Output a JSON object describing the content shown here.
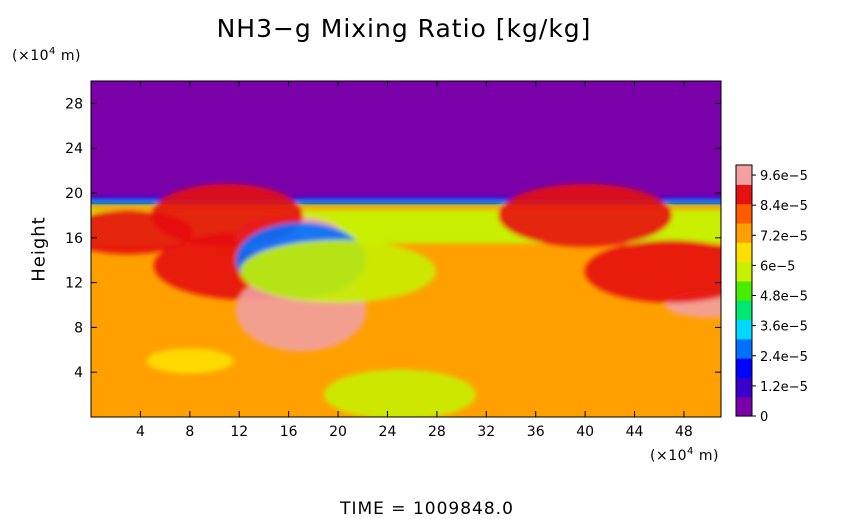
{
  "chart_data": {
    "type": "heatmap",
    "title": "NH3−g Mixing Ratio [kg/kg]",
    "xlabel": "",
    "ylabel": "Height",
    "x_unit_prefix": "(×10",
    "x_unit_exp": "4",
    "x_unit_suffix": " m)",
    "y_unit_prefix": "(×10",
    "y_unit_exp": "4",
    "y_unit_suffix": " m)",
    "xlim": [
      0,
      51
    ],
    "ylim": [
      0,
      30
    ],
    "x_ticks": [
      4,
      8,
      12,
      16,
      20,
      24,
      28,
      32,
      36,
      40,
      44,
      48
    ],
    "x_tick_labels": [
      "4",
      "8",
      "12",
      "16",
      "20",
      "24",
      "28",
      "32",
      "36",
      "40",
      "44",
      "48"
    ],
    "y_ticks": [
      4,
      8,
      12,
      16,
      20,
      24,
      28
    ],
    "y_tick_labels": [
      "4",
      "8",
      "12",
      "16",
      "20",
      "24",
      "28"
    ],
    "colorbar": {
      "vmin": 0,
      "vmax": 0.0001,
      "tick_values": [
        0,
        1.2e-05,
        2.4e-05,
        3.6e-05,
        4.8e-05,
        6e-05,
        7.2e-05,
        8.4e-05,
        9.6e-05
      ],
      "tick_labels": [
        "0",
        "1.2e−5",
        "2.4e−5",
        "3.6e−5",
        "4.8e−5",
        "6e−5",
        "7.2e−5",
        "8.4e−5",
        "9.6e−5"
      ],
      "colors": [
        "#7a00aa",
        "#3a00cc",
        "#0000ff",
        "#0070ff",
        "#00d8ff",
        "#00e870",
        "#48ee00",
        "#c8f000",
        "#ffe000",
        "#ffa000",
        "#ff5a00",
        "#e61010",
        "#f2a0a0"
      ]
    },
    "field": {
      "upper_value": 0.0,
      "lower_value": 7.5e-05,
      "boundary_height": 19.0,
      "band_value": 6e-05,
      "band_bottom": 15.5,
      "band_top": 18.5,
      "features": [
        {
          "x": 13,
          "y": 13.5,
          "value": 9e-05
        },
        {
          "x": 17,
          "y": 9.5,
          "value": 9.5e-05
        },
        {
          "x": 16,
          "y": 16.2,
          "value": 9.8e-05
        },
        {
          "x": 11,
          "y": 18,
          "value": 9e-05
        },
        {
          "x": 3,
          "y": 16.5,
          "value": 9.2e-05
        },
        {
          "x": 40,
          "y": 18,
          "value": 8.8e-05
        },
        {
          "x": 50,
          "y": 10,
          "value": 9.5e-05
        },
        {
          "x": 47,
          "y": 13,
          "value": 9.2e-05
        },
        {
          "x": 17,
          "y": 14,
          "value": 3e-05
        },
        {
          "x": 20,
          "y": 13,
          "value": 5.5e-05
        },
        {
          "x": 25,
          "y": 2,
          "value": 6e-05
        },
        {
          "x": 8,
          "y": 5,
          "value": 6.8e-05
        }
      ]
    }
  },
  "time_label": "TIME  =  1009848.0"
}
